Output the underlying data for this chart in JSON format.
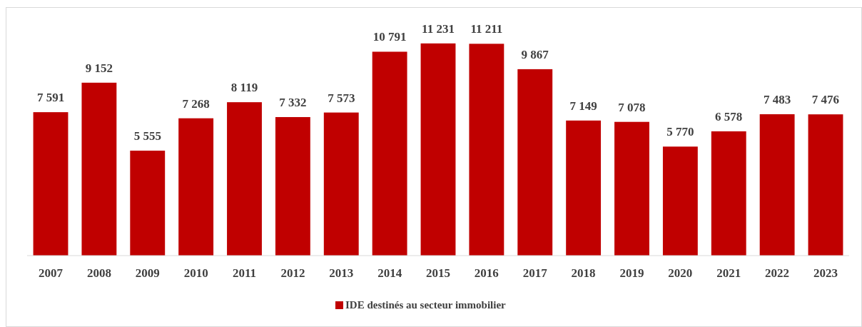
{
  "chart_data": {
    "type": "bar",
    "categories": [
      "2007",
      "2008",
      "2009",
      "2010",
      "2011",
      "2012",
      "2013",
      "2014",
      "2015",
      "2016",
      "2017",
      "2018",
      "2019",
      "2020",
      "2021",
      "2022",
      "2023"
    ],
    "series": [
      {
        "name": "IDE destinés au secteur immobilier",
        "color": "#c00000",
        "values": [
          7591,
          9152,
          5555,
          7268,
          8119,
          7332,
          7573,
          10791,
          11231,
          11211,
          9867,
          7149,
          7078,
          5770,
          6578,
          7483,
          7476
        ]
      }
    ],
    "data_labels": true,
    "value_labels": [
      "7 591",
      "9 152",
      "5 555",
      "7 268",
      "8 119",
      "7 332",
      "7 573",
      "10 791",
      "11 231",
      "11 211",
      "9 867",
      "7 149",
      "7 078",
      "5 770",
      "6 578",
      "7 483",
      "7 476"
    ],
    "legend": "bottom"
  }
}
